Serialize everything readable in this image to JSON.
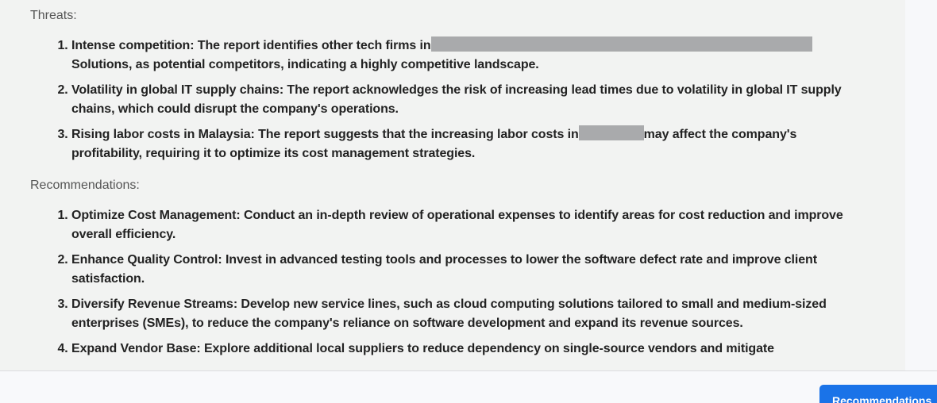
{
  "sections": [
    {
      "heading": "Threats:",
      "items": [
        {
          "parts": [
            "Intense competition: The report identifies other tech firms in",
            "Solutions, as potential competitors, indicating a highly competitive landscape."
          ],
          "redaction": 480
        },
        {
          "parts": [
            "Volatility in global IT supply chains: The report acknowledges the risk of increasing lead times due to volatility in global IT supply chains, which could disrupt the company's operations."
          ]
        },
        {
          "parts": [
            "Rising labor costs in Malaysia: The report suggests that the increasing labor costs in",
            "may affect the company's profitability, requiring it to optimize its cost management strategies."
          ],
          "redaction": 82
        }
      ]
    },
    {
      "heading": "Recommendations:",
      "items": [
        {
          "parts": [
            "Optimize Cost Management: Conduct an in-depth review of operational expenses to identify areas for cost reduction and improve overall efficiency."
          ]
        },
        {
          "parts": [
            "Enhance Quality Control: Invest in advanced testing tools and processes to lower the software defect rate and improve client satisfaction."
          ]
        },
        {
          "parts": [
            "Diversify Revenue Streams: Develop new service lines, such as cloud computing solutions tailored to small and medium-sized enterprises (SMEs), to reduce the company's reliance on software development and expand its revenue sources."
          ]
        },
        {
          "parts": [
            "Expand Vendor Base: Explore additional local suppliers to reduce dependency on single-source vendors and mitigate"
          ]
        }
      ]
    }
  ],
  "button": "Recommendations"
}
